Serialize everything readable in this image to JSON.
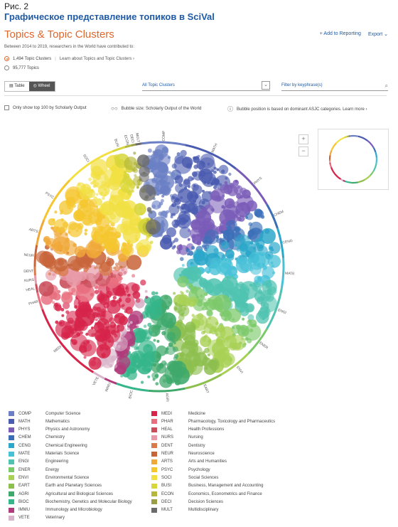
{
  "figure": {
    "label": "Рис. 2",
    "title": "Графическое представление топиков в SciVal"
  },
  "header": {
    "title": "Topics & Topic Clusters",
    "add_to_reporting": "+ Add to Reporting",
    "export": "Export ⌄"
  },
  "subtitle": "Between 2014 to 2019, researchers in the World have contributed to:",
  "options": {
    "clusters": "1,494 Topic Clusters",
    "learn_more": "Learn about Topics and Topic Clusters ›",
    "topics": "95,777 Topics"
  },
  "view_toggle": {
    "table": "Table",
    "wheel": "Wheel"
  },
  "dropdown": {
    "value": "All Topic Clusters"
  },
  "filter": {
    "placeholder": "Filter by keyphrase(s)"
  },
  "settings": {
    "top100": "Only show top 100 by Scholarly Output",
    "bubble_size": "Bubble size: Scholarly Output of the World",
    "bubble_position": "Bubble position is based on dominant ASJC categories. Learn more ›"
  },
  "zoom": {
    "plus": "+",
    "minus": "−"
  },
  "wheel_labels": [
    "COMP",
    "MATH",
    "PHYS",
    "CHEM",
    "CENG",
    "MATE",
    "ENGI",
    "ENER",
    "ENVI",
    "EART",
    "AGRI",
    "BIOC",
    "IMMU",
    "VETE",
    "MEDI",
    "PHAR",
    "HEAL",
    "NURS",
    "DENT",
    "NEUR",
    "ARTS",
    "PSYC",
    "SOCI",
    "BUSI",
    "ECON",
    "DECI",
    "MULT"
  ],
  "legend": [
    {
      "code": "COMP",
      "name": "Computer Science",
      "color": "#6a7fc4"
    },
    {
      "code": "MATH",
      "name": "Mathematics",
      "color": "#4a5bb0"
    },
    {
      "code": "PHYS",
      "name": "Physics and Astronomy",
      "color": "#7a5cb8"
    },
    {
      "code": "CHEM",
      "name": "Chemistry",
      "color": "#3a6fb8"
    },
    {
      "code": "CENG",
      "name": "Chemical Engineering",
      "color": "#2aa7c9"
    },
    {
      "code": "MATE",
      "name": "Materials Science",
      "color": "#47c1d8"
    },
    {
      "code": "ENGI",
      "name": "Engineering",
      "color": "#4fc3b0"
    },
    {
      "code": "ENER",
      "name": "Energy",
      "color": "#7cc96a"
    },
    {
      "code": "ENVI",
      "name": "Environmental Science",
      "color": "#a8d155"
    },
    {
      "code": "EART",
      "name": "Earth and Planetary Sciences",
      "color": "#8dbf4e"
    },
    {
      "code": "AGRI",
      "name": "Agricultural and Biological Sciences",
      "color": "#3fa96b"
    },
    {
      "code": "BIOC",
      "name": "Biochemistry, Genetics and Molecular Biology",
      "color": "#35b58a"
    },
    {
      "code": "IMMU",
      "name": "Immunology and Microbiology",
      "color": "#b03a7a"
    },
    {
      "code": "VETE",
      "name": "Veterinary",
      "color": "#d8b3c9"
    },
    {
      "code": "MEDI",
      "name": "Medicine",
      "color": "#d6244a"
    },
    {
      "code": "PHAR",
      "name": "Pharmacology, Toxicology and Pharmaceutics",
      "color": "#e86f7f"
    },
    {
      "code": "HEAL",
      "name": "Health Professions",
      "color": "#c94d5a"
    },
    {
      "code": "NURS",
      "name": "Nursing",
      "color": "#e89aa8"
    },
    {
      "code": "DENT",
      "name": "Dentistry",
      "color": "#d97a4a"
    },
    {
      "code": "NEUR",
      "name": "Neuroscience",
      "color": "#c8643a"
    },
    {
      "code": "ARTS",
      "name": "Arts and Humanities",
      "color": "#f0a838"
    },
    {
      "code": "PSYC",
      "name": "Psychology",
      "color": "#f5c62e"
    },
    {
      "code": "SOCI",
      "name": "Social Sciences",
      "color": "#f2e043"
    },
    {
      "code": "BUSI",
      "name": "Business, Management and Accounting",
      "color": "#d7d63a"
    },
    {
      "code": "ECON",
      "name": "Economics, Econometrics and Finance",
      "color": "#b5b83a"
    },
    {
      "code": "DECI",
      "name": "Decision Sciences",
      "color": "#9a9f45"
    },
    {
      "code": "MULT",
      "name": "Multidisciplinary",
      "color": "#6b6b6b"
    }
  ]
}
